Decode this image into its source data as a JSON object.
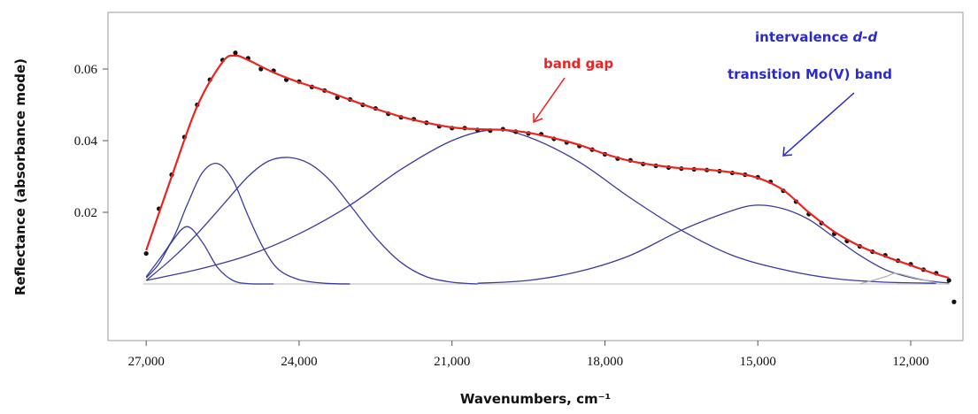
{
  "chart_data": {
    "type": "line",
    "x_label": "Wavenumbers, cm⁻¹",
    "y_label": "Reflectance (absorbance mode)",
    "annotations": [
      {
        "text": "band gap",
        "color": "#ee2222"
      },
      {
        "parts": [
          "intervalence",
          "d-d",
          "transition Mo(V) band"
        ],
        "color": "#2a2ad0"
      }
    ],
    "xlim": [
      27750,
      10975
    ],
    "ylim": [
      -0.0158,
      0.0758
    ],
    "xticks": [
      {
        "value": 27000,
        "label": "27,000"
      },
      {
        "value": 24000,
        "label": "24,000"
      },
      {
        "value": 21000,
        "label": "21,000"
      },
      {
        "value": 18000,
        "label": "18,000"
      },
      {
        "value": 15000,
        "label": "15,000"
      },
      {
        "value": 12000,
        "label": "12,000"
      }
    ],
    "yticks": [
      0.02,
      0.04,
      0.06
    ],
    "series": [
      {
        "style": "line",
        "color": "#3b3b9c",
        "x": [
          27000,
          26750,
          26500,
          26200,
          25900,
          25600,
          25300,
          25000,
          24500
        ],
        "values": [
          0.0017,
          0.0056,
          0.0117,
          0.016,
          0.0117,
          0.0046,
          0.001,
          0.0001,
          0
        ]
      },
      {
        "style": "line",
        "color": "#3b3b9c",
        "x": [
          27000,
          26500,
          26200,
          25900,
          25600,
          25300,
          25000,
          24700,
          24400,
          24000,
          23500,
          23000
        ],
        "values": [
          0.002,
          0.012,
          0.022,
          0.031,
          0.0336,
          0.029,
          0.019,
          0.01,
          0.004,
          0.0012,
          0.0002,
          0
        ]
      },
      {
        "style": "line",
        "color": "#3b3b9c",
        "x": [
          27000,
          26500,
          26000,
          25500,
          25000,
          24600,
          24200,
          23800,
          23400,
          23000,
          22500,
          22000,
          21500,
          21000,
          20500
        ],
        "values": [
          0.001,
          0.007,
          0.014,
          0.022,
          0.03,
          0.0343,
          0.0353,
          0.0336,
          0.029,
          0.022,
          0.013,
          0.006,
          0.002,
          0.0005,
          0
        ]
      },
      {
        "style": "line",
        "color": "#3b3b9c",
        "x": [
          27000,
          26000,
          25000,
          24000,
          23000,
          22000,
          21000,
          20200,
          19500,
          18500,
          17500,
          16500,
          15500,
          14500,
          13500,
          12500,
          11500
        ],
        "values": [
          0.001,
          0.004,
          0.008,
          0.014,
          0.022,
          0.032,
          0.04,
          0.043,
          0.041,
          0.034,
          0.024,
          0.015,
          0.008,
          0.004,
          0.0015,
          0.0005,
          0.0002
        ]
      },
      {
        "style": "line",
        "color": "#3b3b9c",
        "x": [
          20500,
          19500,
          18500,
          17500,
          16500,
          15500,
          15000,
          14500,
          14000,
          13500,
          13000,
          12500,
          12000,
          11500,
          11250
        ],
        "values": [
          0.0002,
          0.001,
          0.0035,
          0.008,
          0.015,
          0.0205,
          0.022,
          0.021,
          0.018,
          0.013,
          0.008,
          0.004,
          0.0018,
          0.0006,
          0.0003
        ]
      },
      {
        "style": "line",
        "color": "#b4b4b4",
        "x": [
          13000,
          12500,
          12300,
          12000,
          11500
        ],
        "values": [
          0,
          0.002,
          0.003,
          0.002,
          0.0003
        ]
      },
      {
        "style": "points",
        "color": "#111111",
        "x": [
          27000,
          26750,
          26500,
          26250,
          26000,
          25750,
          25500,
          25250,
          25000,
          24750,
          24500,
          24250,
          24000,
          23750,
          23500,
          23250,
          23000,
          22750,
          22500,
          22250,
          22000,
          21750,
          21500,
          21250,
          21000,
          20750,
          20500,
          20250,
          20000,
          19750,
          19500,
          19250,
          19000,
          18750,
          18500,
          18250,
          18000,
          17750,
          17500,
          17250,
          17000,
          16750,
          16500,
          16250,
          16000,
          15750,
          15500,
          15250,
          15000,
          14750,
          14500,
          14250,
          14000,
          13750,
          13500,
          13250,
          13000,
          12750,
          12500,
          12250,
          12000,
          11750,
          11500,
          11250,
          11150
        ],
        "values": [
          0.0085,
          0.021,
          0.0305,
          0.041,
          0.05,
          0.057,
          0.0625,
          0.0645,
          0.063,
          0.06,
          0.0595,
          0.057,
          0.0565,
          0.055,
          0.054,
          0.052,
          0.0515,
          0.05,
          0.049,
          0.0475,
          0.0465,
          0.046,
          0.045,
          0.044,
          0.0435,
          0.0435,
          0.043,
          0.0428,
          0.0432,
          0.0425,
          0.042,
          0.0418,
          0.0405,
          0.0395,
          0.0385,
          0.0375,
          0.0362,
          0.035,
          0.0345,
          0.0335,
          0.033,
          0.0325,
          0.0322,
          0.032,
          0.0318,
          0.0315,
          0.031,
          0.0305,
          0.0298,
          0.0285,
          0.026,
          0.023,
          0.0195,
          0.017,
          0.014,
          0.012,
          0.0105,
          0.009,
          0.008,
          0.0065,
          0.0055,
          0.004,
          0.003,
          0.001,
          -0.005
        ]
      },
      {
        "style": "line",
        "color": "#e8251f",
        "x": [
          27000,
          26500,
          26000,
          25500,
          25250,
          25000,
          24500,
          24000,
          23500,
          23000,
          22500,
          22000,
          21500,
          21000,
          20500,
          20000,
          19500,
          19000,
          18500,
          18000,
          17500,
          17000,
          16500,
          16000,
          15500,
          15000,
          14500,
          14000,
          13500,
          13000,
          12500,
          12000,
          11500,
          11250
        ],
        "values": [
          0.0094,
          0.03,
          0.0496,
          0.062,
          0.0637,
          0.0625,
          0.059,
          0.0563,
          0.054,
          0.0514,
          0.0489,
          0.0467,
          0.045,
          0.0437,
          0.0432,
          0.043,
          0.0422,
          0.0407,
          0.0388,
          0.0363,
          0.0343,
          0.0331,
          0.0323,
          0.0319,
          0.0311,
          0.0296,
          0.0262,
          0.02,
          0.0146,
          0.0106,
          0.0077,
          0.0052,
          0.0027,
          0.0017
        ]
      }
    ]
  }
}
